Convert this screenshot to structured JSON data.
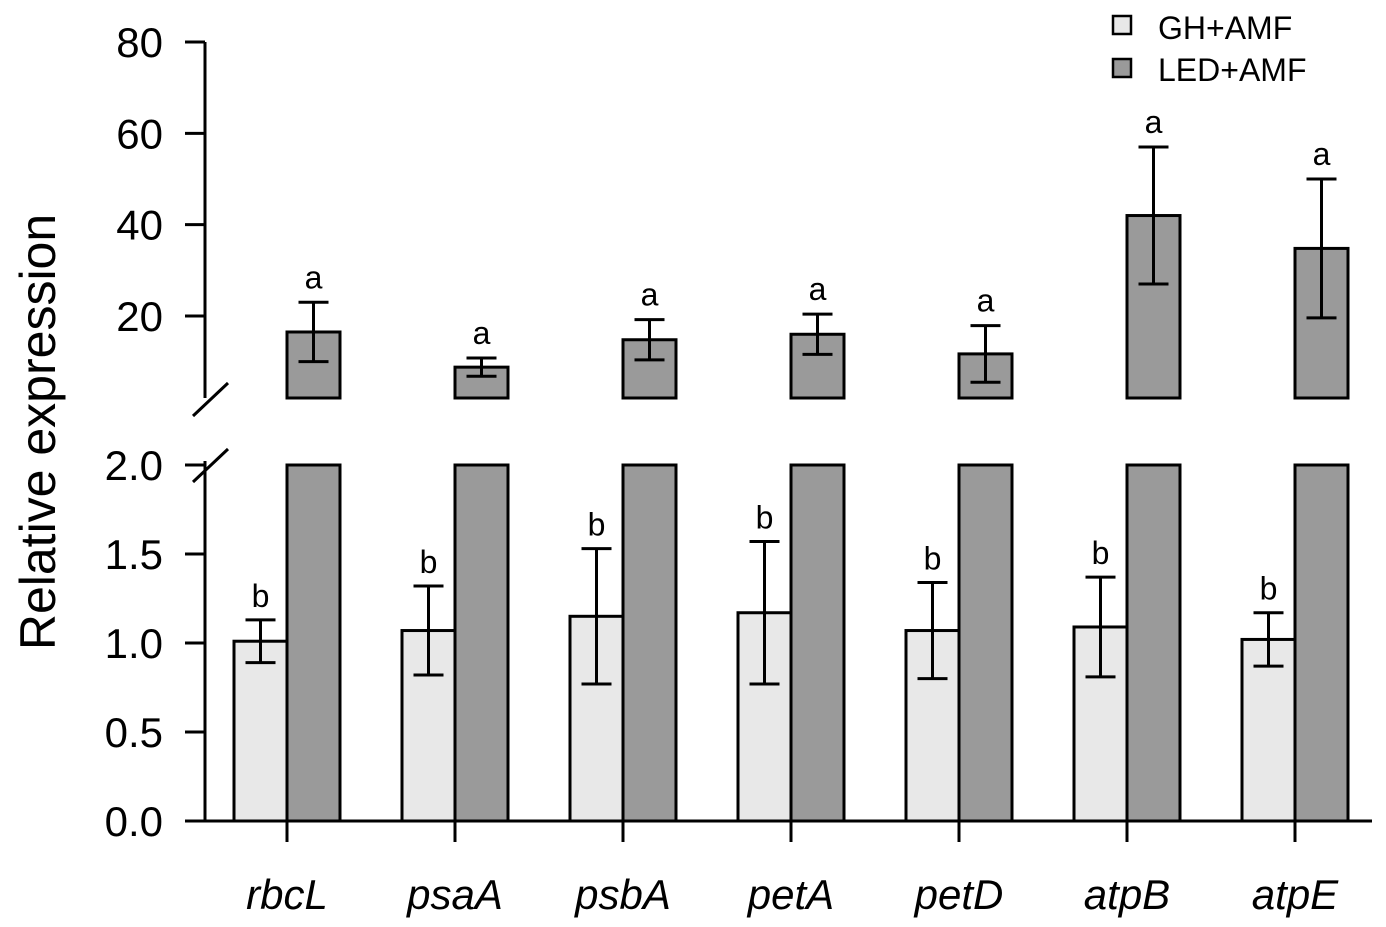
{
  "chart_data": {
    "type": "bar",
    "ylabel": "Relative expression",
    "xlabel": "",
    "categories": [
      "rbcL",
      "psaA",
      "psbA",
      "petA",
      "petD",
      "atpB",
      "atpE"
    ],
    "axis_break": {
      "lower_ylim": [
        0,
        2.0
      ],
      "lower_ticks": [
        "0.0",
        "0.5",
        "1.0",
        "1.5",
        "2.0"
      ],
      "upper_ylim": [
        2.5,
        80
      ],
      "upper_ticks": [
        "20",
        "40",
        "60",
        "80"
      ]
    },
    "series": [
      {
        "name": "GH+AMF",
        "color": "#e8e8e8",
        "values": [
          1.01,
          1.07,
          1.15,
          1.17,
          1.07,
          1.09,
          1.02
        ],
        "errors": [
          0.12,
          0.25,
          0.38,
          0.4,
          0.27,
          0.28,
          0.15
        ],
        "letters": [
          "b",
          "b",
          "b",
          "b",
          "b",
          "b",
          "b"
        ]
      },
      {
        "name": "LED+AMF",
        "color": "#9a9a9a",
        "values": [
          16.5,
          8.8,
          14.8,
          16.0,
          11.7,
          42.0,
          34.8
        ],
        "errors": [
          6.5,
          2.0,
          4.4,
          4.4,
          6.2,
          15.0,
          15.2
        ],
        "letters": [
          "a",
          "a",
          "a",
          "a",
          "a",
          "a",
          "a"
        ]
      }
    ],
    "legend": "top-right"
  }
}
